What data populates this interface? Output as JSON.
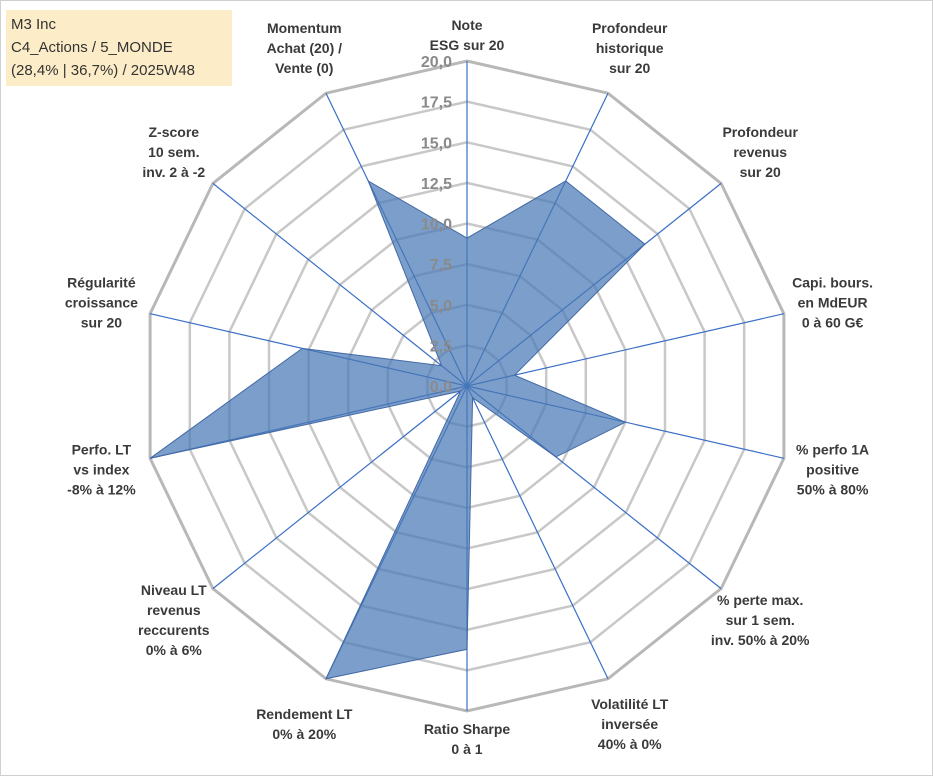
{
  "info": {
    "line1": "M3 Inc",
    "line2": "C4_Actions / 5_MONDE",
    "line3": "(28,4% | 36,7%) / 2025W48"
  },
  "chart_data": {
    "type": "radar",
    "rmax": 20,
    "ticks": [
      "0,0",
      "2,5",
      "5,0",
      "7,5",
      "10,0",
      "12,5",
      "15,0",
      "17,5",
      "20,0"
    ],
    "tick_values": [
      0,
      2.5,
      5,
      7.5,
      10,
      12.5,
      15,
      17.5,
      20
    ],
    "axes": [
      {
        "lines": [
          "Note",
          "ESG sur 20"
        ]
      },
      {
        "lines": [
          "Profondeur",
          "historique",
          "sur 20"
        ]
      },
      {
        "lines": [
          "Profondeur",
          "revenus",
          "sur 20"
        ]
      },
      {
        "lines": [
          "Capi. bours.",
          "en MdEUR",
          "0 à 60 G€"
        ]
      },
      {
        "lines": [
          "% perfo 1A",
          "positive",
          "50% à 80%"
        ]
      },
      {
        "lines": [
          "% perte max.",
          "sur 1 sem.",
          "inv. 50% à 20%"
        ]
      },
      {
        "lines": [
          "Volatilité LT",
          "inversée",
          "40% à 0%"
        ]
      },
      {
        "lines": [
          "Ratio Sharpe",
          "0 à 1"
        ]
      },
      {
        "lines": [
          "Rendement LT",
          "0% à 20%"
        ]
      },
      {
        "lines": [
          "Niveau LT",
          "revenus",
          "reccurents",
          "0% à 6%"
        ]
      },
      {
        "lines": [
          "Perfo. LT",
          "vs index",
          "-8% à 12%"
        ]
      },
      {
        "lines": [
          "Régularité",
          "croissance",
          "sur 20"
        ]
      },
      {
        "lines": [
          "Z-score",
          "10 sem.",
          "inv. 2 à -2"
        ]
      },
      {
        "lines": [
          "Momentum",
          "Achat (20) /",
          "Vente (0)"
        ]
      }
    ],
    "values": [
      9.1,
      14.0,
      14.0,
      3.0,
      10.0,
      7.0,
      0.8,
      16.2,
      20.0,
      0.5,
      20.0,
      10.4,
      2.0,
      14.0
    ],
    "colors": {
      "fill": "#4a78b5",
      "fill_opacity": 0.72,
      "edge": "#4169a5",
      "axis": "#3b6fc6",
      "grid": "#c8c8c8"
    }
  }
}
